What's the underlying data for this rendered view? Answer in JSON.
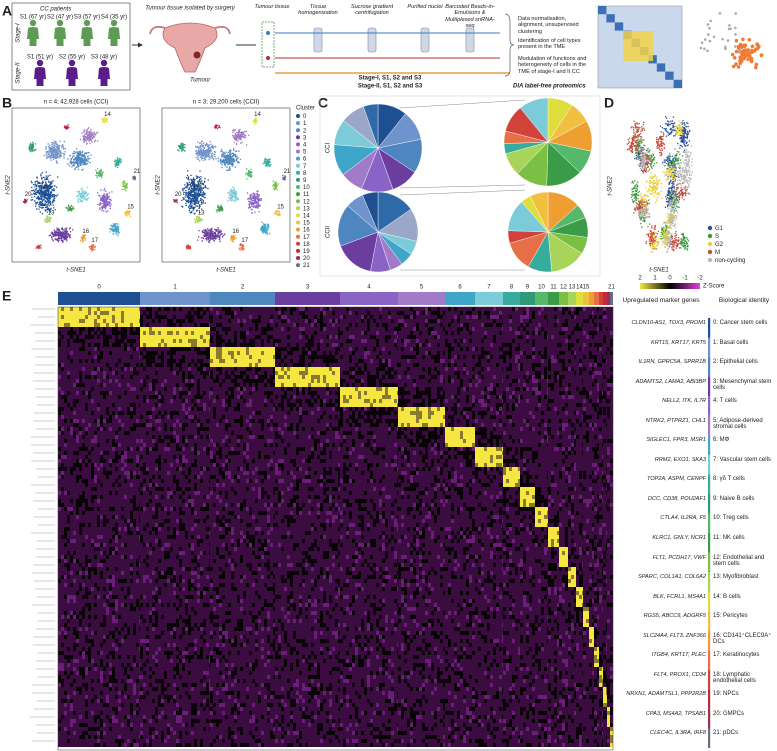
{
  "panels": [
    "A",
    "B",
    "C",
    "D",
    "E"
  ],
  "panel_a": {
    "group_title": "CC patients",
    "stages": [
      {
        "label": "Stage-I",
        "patients": [
          "S1 (67 yr)",
          "S2 (47 yr)",
          "S3 (57 yr)",
          "S4 (35 yr)"
        ]
      },
      {
        "label": "Stage-II",
        "patients": [
          "S1 (51 yr)",
          "S2 (55 yr)",
          "S3 (48 yr)"
        ]
      }
    ],
    "surgery": "Tumour tissue isolated by surgery",
    "tumour": "Tumour",
    "steps": [
      "Tumour tissue",
      "Tissue homogenization",
      "Sucrose gradient centrifugation",
      "Purified nuclei",
      "Barcoded Beads-in-Emulsions & Multiplexed snRNA-seq"
    ],
    "outcomes": [
      "Data normalisation, alignment, unsupervised clustering",
      "Identification of cell types present in the TME",
      "Modulation of functions and heterogeneity of cells in the TME of stage-I and II CC"
    ],
    "proteomics": {
      "stage1": "Stage-I, S1, S2 and S3",
      "stage2": "Stage-II, S1, S2 and S3",
      "method": "DIA label-free proteomics"
    }
  },
  "panel_b": {
    "plots": [
      {
        "title": "n = 4; 42,928 cells (CCI)"
      },
      {
        "title": "n = 3; 29,200 cells (CCII)"
      }
    ],
    "x_label": "t-SNE1",
    "y_label": "t-SNE2",
    "legend_title": "Cluster",
    "clusters": [
      0,
      1,
      2,
      3,
      4,
      5,
      6,
      7,
      8,
      9,
      10,
      11,
      12,
      13,
      14,
      15,
      16,
      17,
      18,
      19,
      20,
      21
    ]
  },
  "panel_c": {
    "groups": [
      "CCI",
      "CCII"
    ]
  },
  "panel_d": {
    "x_label": "t-SNE1",
    "y_label": "t-SNE2",
    "legend": [
      "G1",
      "S",
      "G2",
      "M",
      "non-cycling"
    ]
  },
  "panel_e": {
    "colorbar": {
      "title": "Z-Score",
      "ticks": [
        2,
        1,
        0,
        -1,
        -2
      ]
    },
    "headers": [
      "Upregulated marker genes",
      "Biological identity"
    ],
    "rows": [
      {
        "markers": "CLDN10-AS1, TOX3, PROM1",
        "identity": "0: Cancer stem cells"
      },
      {
        "markers": "KRT15, KRT17, KRT5",
        "identity": "1: Basal cells"
      },
      {
        "markers": "IL1RN, GPRC5A, SPRR1B",
        "identity": "2: Epithelial cells"
      },
      {
        "markers": "ADAMTS2, LAMA2, ABI3BP",
        "identity": "3: Mesenchymal stem cells"
      },
      {
        "markers": "NELL2, ITK, IL7R",
        "identity": "4: T cells"
      },
      {
        "markers": "NTRK2, PTPRZ1, CHL1",
        "identity": "5: Adipose-derived stromal cells"
      },
      {
        "markers": "SIGLEC1, FPR3, MSR1",
        "identity": "6: MΦ"
      },
      {
        "markers": "RRM2, EXO1, SKA3",
        "identity": "7: Vascular stem cells"
      },
      {
        "markers": "TOP2A, ASPM, CENPF",
        "identity": "8: γδ T cells"
      },
      {
        "markers": "DCC, CD38, POU2AF1",
        "identity": "9: Naive B cells"
      },
      {
        "markers": "CTLA4, IL2RA, F5",
        "identity": "10: Treg cells"
      },
      {
        "markers": "KLRC1, GNLY, NCR1",
        "identity": "11: NK cells"
      },
      {
        "markers": "FLT1, PCDH17, VWF",
        "identity": "12: Endothelial and stem cells"
      },
      {
        "markers": "SPARC, COL1A1, COL6A2",
        "identity": "13: Myofibroblast"
      },
      {
        "markers": "BLK, FCRL1, MS4A1",
        "identity": "14: B cells"
      },
      {
        "markers": "RGS5, ABCC9, ADGRF5",
        "identity": "15: Pericytes"
      },
      {
        "markers": "SLC24A4, FLT3, ZNF366",
        "identity": "16: CD141⁺CLEC9A⁺ DCs"
      },
      {
        "markers": "ITGB4, KRT17, PLEC",
        "identity": "17: Keratinocytes"
      },
      {
        "markers": "FLT4, PROX1, CD34",
        "identity": "18: Lymphatic endothelial cells"
      },
      {
        "markers": "NRXN1, ADAMTSL1, PPP2R2B",
        "identity": "19: NPCs"
      },
      {
        "markers": "CPA3, MS4A2, TPSAB1",
        "identity": "20: GMPCs"
      },
      {
        "markers": "CLEC4C, IL3RA, IRF8",
        "identity": "21: pDCs"
      }
    ]
  }
}
